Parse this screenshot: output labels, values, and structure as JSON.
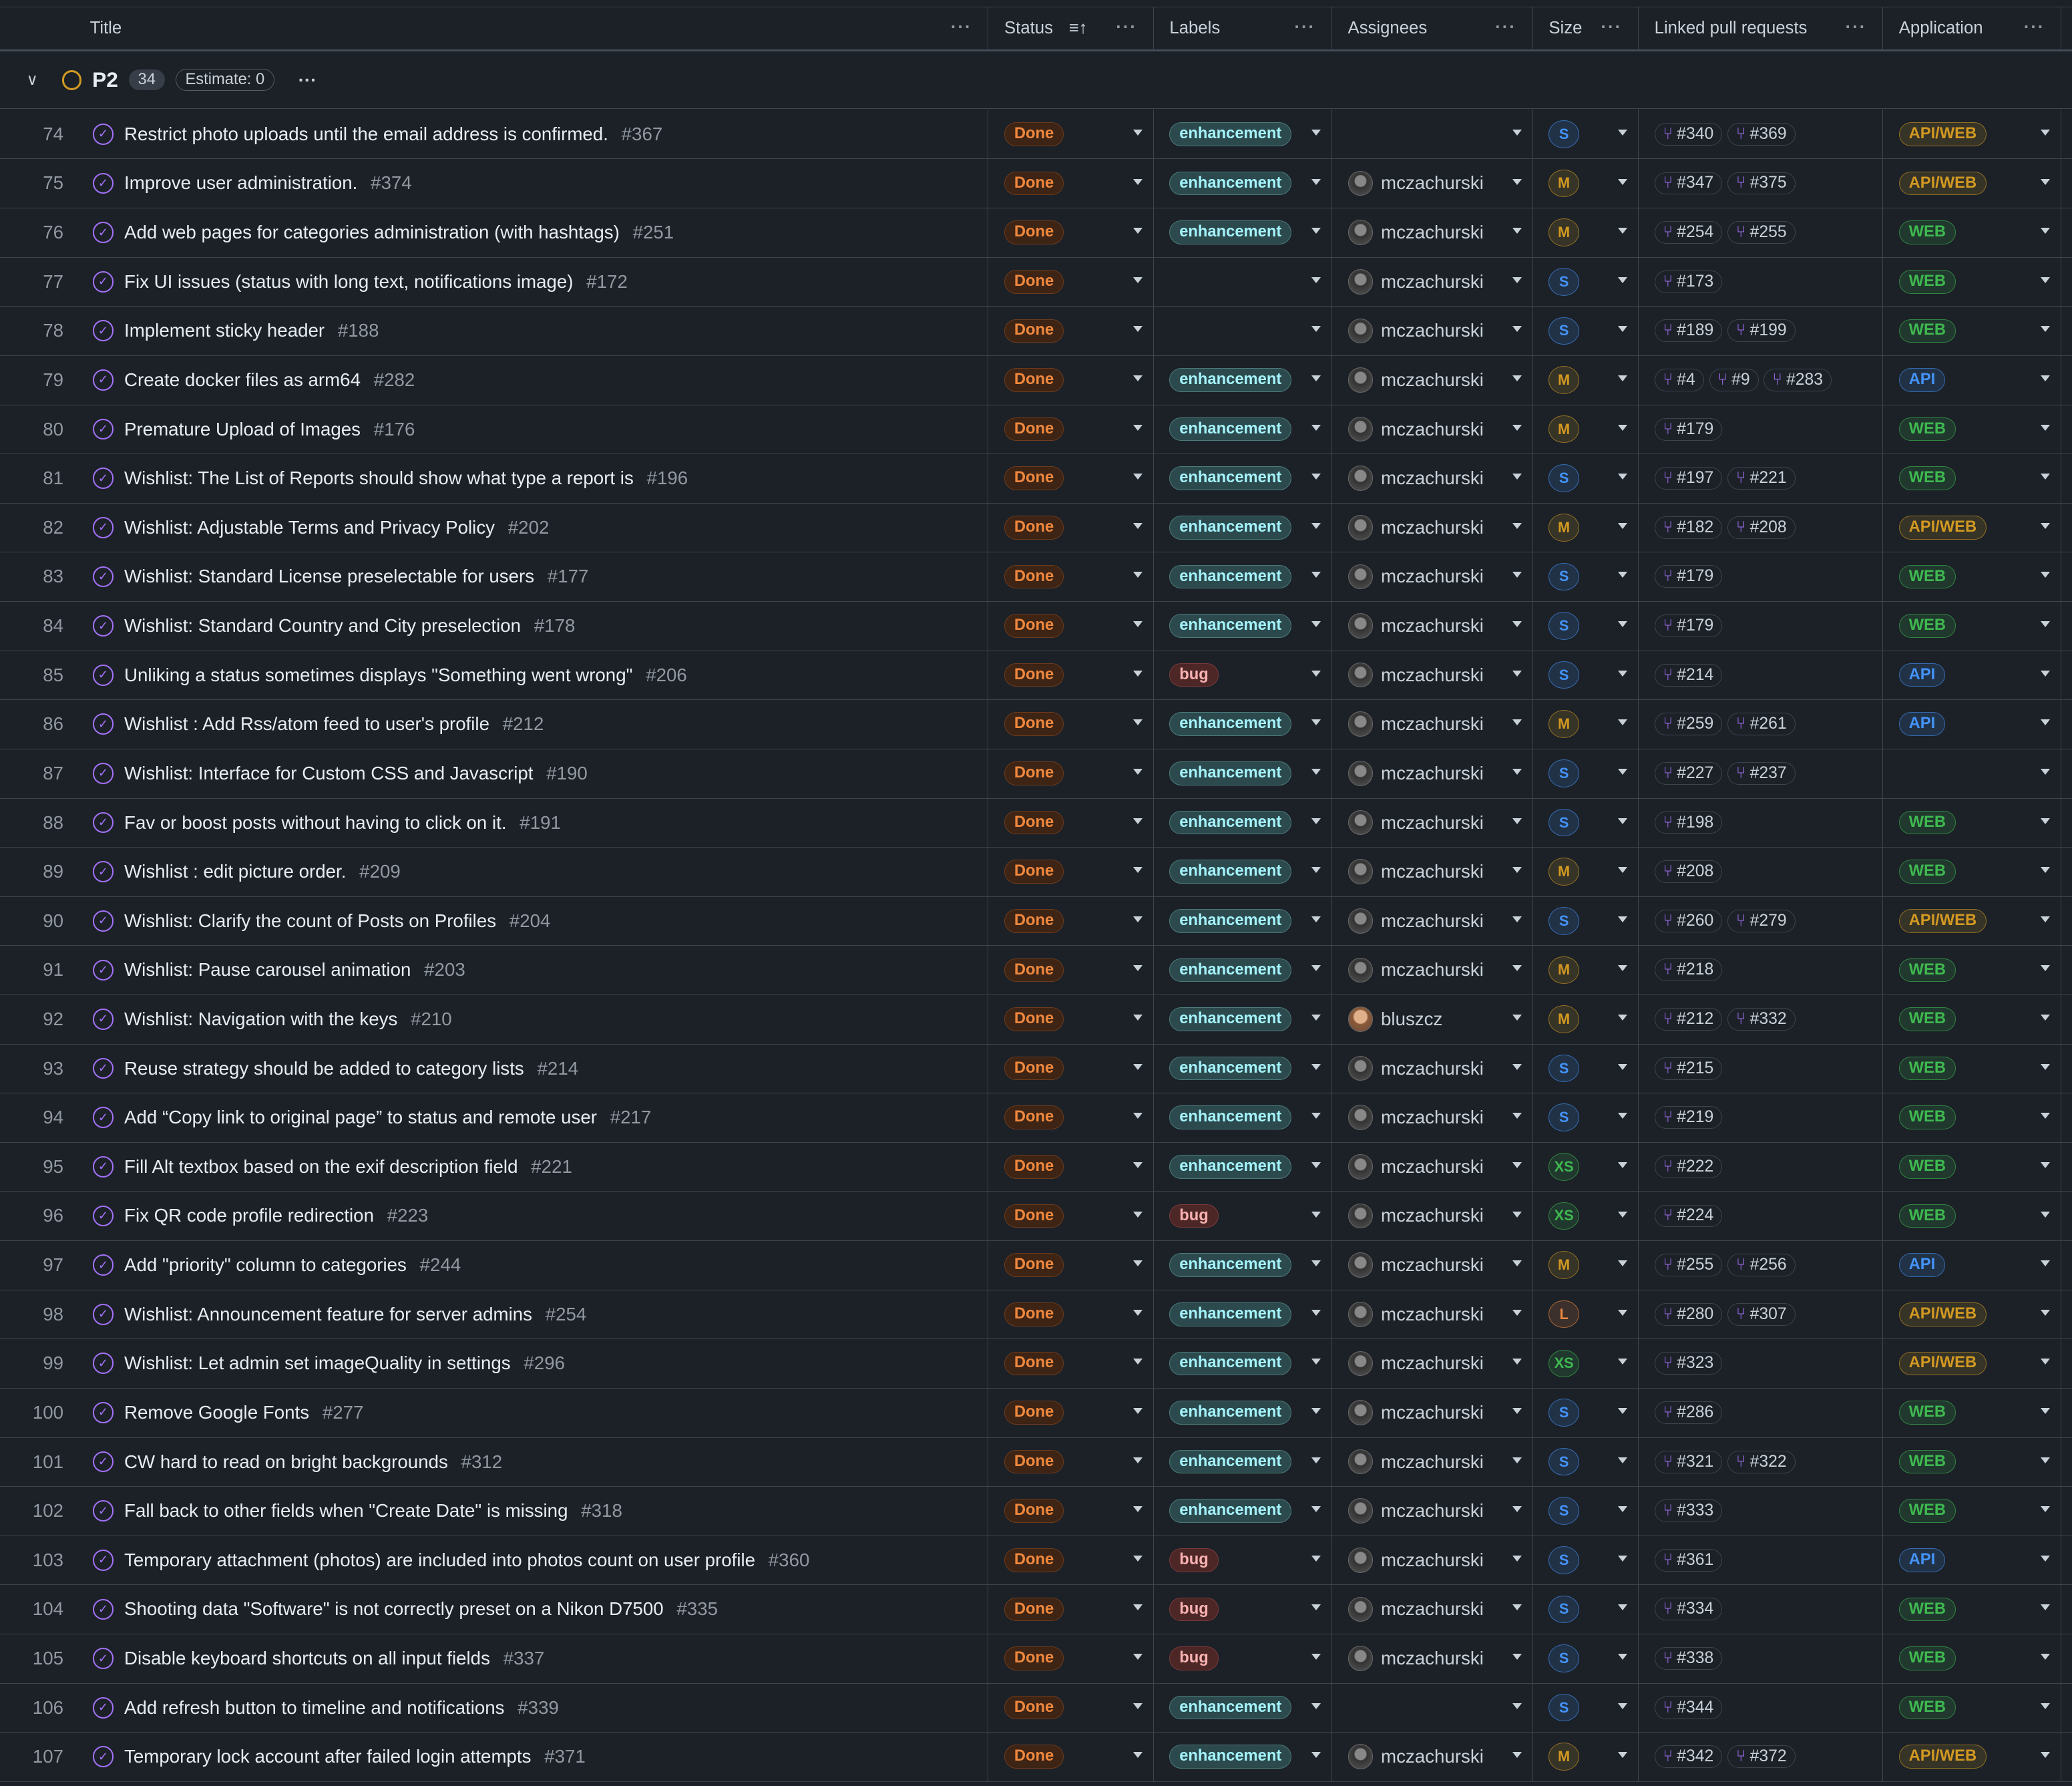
{
  "columns": [
    "Title",
    "Status",
    "Labels",
    "Assignees",
    "Size",
    "Linked pull requests",
    "Application"
  ],
  "group": {
    "name": "P2",
    "count": "34",
    "estimate": "Estimate: 0"
  },
  "colors": {
    "S": "#4493f8",
    "M": "#d29922",
    "XS": "#3fb950",
    "L": "#f0883e",
    "API/WEB": "#d29922",
    "WEB": "#3fb950",
    "API": "#4493f8"
  },
  "rows": [
    [
      "74",
      "Restrict photo uploads until the email address is confirmed.",
      "#367",
      "Done",
      "enhancement",
      "",
      "S",
      [
        "#340",
        "#369"
      ],
      "API/WEB"
    ],
    [
      "75",
      "Improve user administration.",
      "#374",
      "Done",
      "enhancement",
      "mczachurski",
      "M",
      [
        "#347",
        "#375"
      ],
      "API/WEB"
    ],
    [
      "76",
      "Add web pages for categories administration (with hashtags)",
      "#251",
      "Done",
      "enhancement",
      "mczachurski",
      "M",
      [
        "#254",
        "#255"
      ],
      "WEB"
    ],
    [
      "77",
      "Fix UI issues (status with long text, notifications image)",
      "#172",
      "Done",
      "",
      "mczachurski",
      "S",
      [
        "#173"
      ],
      "WEB"
    ],
    [
      "78",
      "Implement sticky header",
      "#188",
      "Done",
      "",
      "mczachurski",
      "S",
      [
        "#189",
        "#199"
      ],
      "WEB"
    ],
    [
      "79",
      "Create docker files as arm64",
      "#282",
      "Done",
      "enhancement",
      "mczachurski",
      "M",
      [
        "#4",
        "#9",
        "#283"
      ],
      "API"
    ],
    [
      "80",
      "Premature Upload of Images",
      "#176",
      "Done",
      "enhancement",
      "mczachurski",
      "M",
      [
        "#179"
      ],
      "WEB"
    ],
    [
      "81",
      "Wishlist: The List of Reports should show what type a report is",
      "#196",
      "Done",
      "enhancement",
      "mczachurski",
      "S",
      [
        "#197",
        "#221"
      ],
      "WEB"
    ],
    [
      "82",
      "Wishlist: Adjustable Terms and Privacy Policy",
      "#202",
      "Done",
      "enhancement",
      "mczachurski",
      "M",
      [
        "#182",
        "#208"
      ],
      "API/WEB"
    ],
    [
      "83",
      "Wishlist: Standard License preselectable for users",
      "#177",
      "Done",
      "enhancement",
      "mczachurski",
      "S",
      [
        "#179"
      ],
      "WEB"
    ],
    [
      "84",
      "Wishlist: Standard Country and City preselection",
      "#178",
      "Done",
      "enhancement",
      "mczachurski",
      "S",
      [
        "#179"
      ],
      "WEB"
    ],
    [
      "85",
      "Unliking a status sometimes displays \"Something went wrong\"",
      "#206",
      "Done",
      "bug",
      "mczachurski",
      "S",
      [
        "#214"
      ],
      "API"
    ],
    [
      "86",
      "Wishlist : Add Rss/atom feed to user's profile",
      "#212",
      "Done",
      "enhancement",
      "mczachurski",
      "M",
      [
        "#259",
        "#261"
      ],
      "API"
    ],
    [
      "87",
      "Wishlist: Interface for Custom CSS and Javascript",
      "#190",
      "Done",
      "enhancement",
      "mczachurski",
      "S",
      [
        "#227",
        "#237"
      ],
      ""
    ],
    [
      "88",
      "Fav or boost posts without having to click on it.",
      "#191",
      "Done",
      "enhancement",
      "mczachurski",
      "S",
      [
        "#198"
      ],
      "WEB"
    ],
    [
      "89",
      "Wishlist : edit picture order.",
      "#209",
      "Done",
      "enhancement",
      "mczachurski",
      "M",
      [
        "#208"
      ],
      "WEB"
    ],
    [
      "90",
      "Wishlist: Clarify the count of Posts on Profiles",
      "#204",
      "Done",
      "enhancement",
      "mczachurski",
      "S",
      [
        "#260",
        "#279"
      ],
      "API/WEB"
    ],
    [
      "91",
      "Wishlist: Pause carousel animation",
      "#203",
      "Done",
      "enhancement",
      "mczachurski",
      "M",
      [
        "#218"
      ],
      "WEB"
    ],
    [
      "92",
      "Wishlist: Navigation with the keys",
      "#210",
      "Done",
      "enhancement",
      "bluszcz",
      "M",
      [
        "#212",
        "#332"
      ],
      "WEB"
    ],
    [
      "93",
      "Reuse strategy should be added to category lists",
      "#214",
      "Done",
      "enhancement",
      "mczachurski",
      "S",
      [
        "#215"
      ],
      "WEB"
    ],
    [
      "94",
      "Add “Copy link to original page” to status and remote user",
      "#217",
      "Done",
      "enhancement",
      "mczachurski",
      "S",
      [
        "#219"
      ],
      "WEB"
    ],
    [
      "95",
      "Fill Alt textbox based on the exif description field",
      "#221",
      "Done",
      "enhancement",
      "mczachurski",
      "XS",
      [
        "#222"
      ],
      "WEB"
    ],
    [
      "96",
      "Fix QR code profile redirection",
      "#223",
      "Done",
      "bug",
      "mczachurski",
      "XS",
      [
        "#224"
      ],
      "WEB"
    ],
    [
      "97",
      "Add \"priority\" column to categories",
      "#244",
      "Done",
      "enhancement",
      "mczachurski",
      "M",
      [
        "#255",
        "#256"
      ],
      "API"
    ],
    [
      "98",
      "Wishlist: Announcement feature for server admins",
      "#254",
      "Done",
      "enhancement",
      "mczachurski",
      "L",
      [
        "#280",
        "#307"
      ],
      "API/WEB"
    ],
    [
      "99",
      "Wishlist: Let admin set imageQuality in settings",
      "#296",
      "Done",
      "enhancement",
      "mczachurski",
      "XS",
      [
        "#323"
      ],
      "API/WEB"
    ],
    [
      "100",
      "Remove Google Fonts",
      "#277",
      "Done",
      "enhancement",
      "mczachurski",
      "S",
      [
        "#286"
      ],
      "WEB"
    ],
    [
      "101",
      "CW hard to read on bright backgrounds",
      "#312",
      "Done",
      "enhancement",
      "mczachurski",
      "S",
      [
        "#321",
        "#322"
      ],
      "WEB"
    ],
    [
      "102",
      "Fall back to other fields when \"Create Date\" is missing",
      "#318",
      "Done",
      "enhancement",
      "mczachurski",
      "S",
      [
        "#333"
      ],
      "WEB"
    ],
    [
      "103",
      "Temporary attachment (photos) are included into photos count on user profile",
      "#360",
      "Done",
      "bug",
      "mczachurski",
      "S",
      [
        "#361"
      ],
      "API"
    ],
    [
      "104",
      "Shooting data \"Software\" is not correctly preset on a Nikon D7500",
      "#335",
      "Done",
      "bug",
      "mczachurski",
      "S",
      [
        "#334"
      ],
      "WEB"
    ],
    [
      "105",
      "Disable keyboard shortcuts on all input fields",
      "#337",
      "Done",
      "bug",
      "mczachurski",
      "S",
      [
        "#338"
      ],
      "WEB"
    ],
    [
      "106",
      "Add refresh button to timeline and notifications",
      "#339",
      "Done",
      "enhancement",
      "",
      "S",
      [
        "#344"
      ],
      "WEB"
    ],
    [
      "107",
      "Temporary lock account after failed login attempts",
      "#371",
      "Done",
      "enhancement",
      "mczachurski",
      "M",
      [
        "#342",
        "#372"
      ],
      "API/WEB"
    ]
  ]
}
